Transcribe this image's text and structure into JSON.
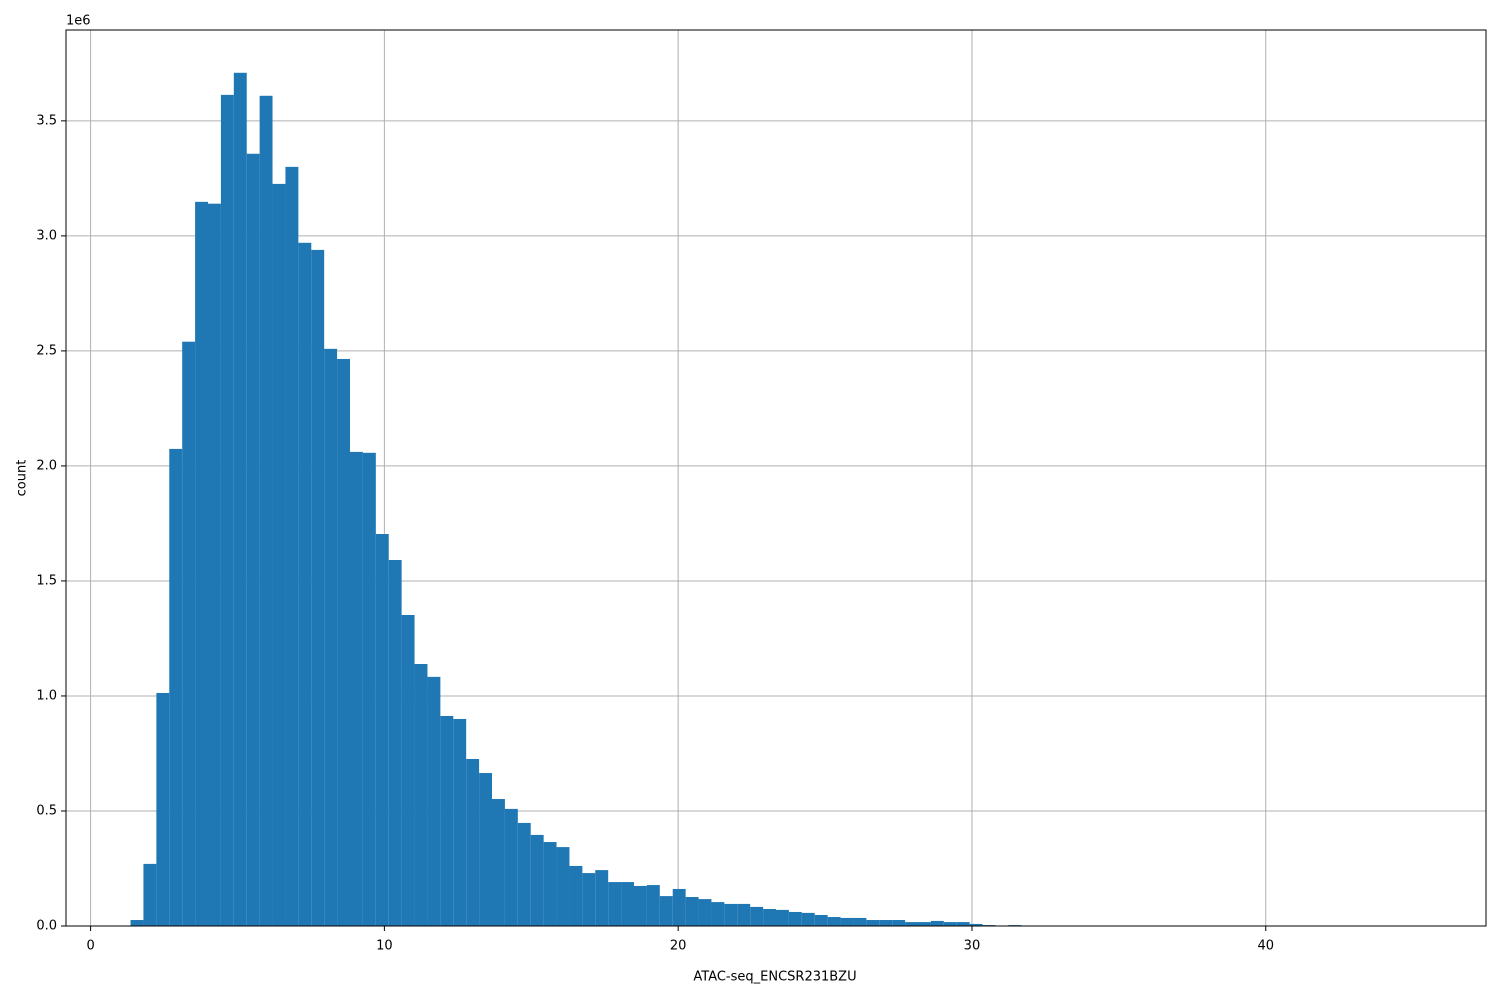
{
  "chart_data": {
    "type": "histogram",
    "x_label": "ATAC-seq_ENCSR231BZU",
    "y_label": "count",
    "y_offset_text": "1e6",
    "color": "#1f77b4",
    "grid": true,
    "bins": [
      1.36,
      1.799,
      2.239,
      2.678,
      3.118,
      3.557,
      3.996,
      4.436,
      4.875,
      5.315,
      5.754,
      6.193,
      6.633,
      7.072,
      7.512,
      7.951,
      8.39,
      8.83,
      9.269,
      9.709,
      10.148,
      10.587,
      11.027,
      11.466,
      11.906,
      12.345,
      12.784,
      13.224,
      13.663,
      14.103,
      14.542,
      14.981,
      15.421,
      15.86,
      16.3,
      16.739,
      17.178,
      17.618,
      18.057,
      18.497,
      18.936,
      19.375,
      19.815,
      20.254,
      20.694,
      21.133,
      21.572,
      22.012,
      22.451,
      22.891,
      23.33,
      23.769,
      24.209,
      24.648,
      25.088,
      25.527,
      25.966,
      26.406,
      26.845,
      27.285,
      27.724,
      28.163,
      28.603,
      29.042,
      29.482,
      29.921,
      30.36,
      30.8,
      31.239,
      31.679,
      32.118,
      32.557,
      32.997,
      33.436,
      33.876,
      34.315,
      34.754,
      35.194,
      35.633,
      36.073,
      36.512,
      36.951,
      37.391,
      37.83,
      38.27,
      38.709,
      39.148,
      39.588,
      40.027,
      40.467,
      40.906,
      41.345,
      41.785,
      42.224,
      42.664,
      43.103,
      43.542,
      43.982,
      44.421,
      44.861,
      45.3
    ],
    "counts": [
      26000,
      270000,
      1013000,
      2074000,
      2540000,
      3148000,
      3140000,
      3613000,
      3709000,
      3357000,
      3609000,
      3226000,
      3300000,
      2970000,
      2939000,
      2509000,
      2465000,
      2061000,
      2057000,
      1704000,
      1591000,
      1352000,
      1139000,
      1083000,
      913000,
      900000,
      726000,
      665000,
      552000,
      509000,
      448000,
      396000,
      365000,
      343000,
      261000,
      230000,
      243000,
      191000,
      191000,
      174000,
      178000,
      130000,
      161000,
      126000,
      117000,
      104000,
      96000,
      96000,
      83000,
      74000,
      70000,
      61000,
      57000,
      48000,
      39000,
      35000,
      35000,
      26000,
      26000,
      26000,
      17000,
      17000,
      22000,
      17000,
      17000,
      9000,
      4000,
      2000,
      4000,
      2000,
      1500,
      1000,
      1000,
      800,
      600,
      500,
      400,
      300,
      300,
      200,
      200,
      100,
      100,
      100,
      100,
      0,
      0,
      0,
      0,
      0,
      0,
      0,
      0,
      0,
      0,
      0,
      0,
      0,
      0,
      1
    ],
    "xlim": [
      -0.837,
      47.497
    ],
    "xticks": [
      0,
      10,
      20,
      30,
      40
    ],
    "ylim": [
      0,
      3895000
    ],
    "yticks": [
      {
        "value": 0,
        "label": "0.0"
      },
      {
        "value": 500000,
        "label": "0.5"
      },
      {
        "value": 1000000,
        "label": "1.0"
      },
      {
        "value": 1500000,
        "label": "1.5"
      },
      {
        "value": 2000000,
        "label": "2.0"
      },
      {
        "value": 2500000,
        "label": "2.5"
      },
      {
        "value": 3000000,
        "label": "3.0"
      },
      {
        "value": 3500000,
        "label": "3.5"
      }
    ]
  }
}
